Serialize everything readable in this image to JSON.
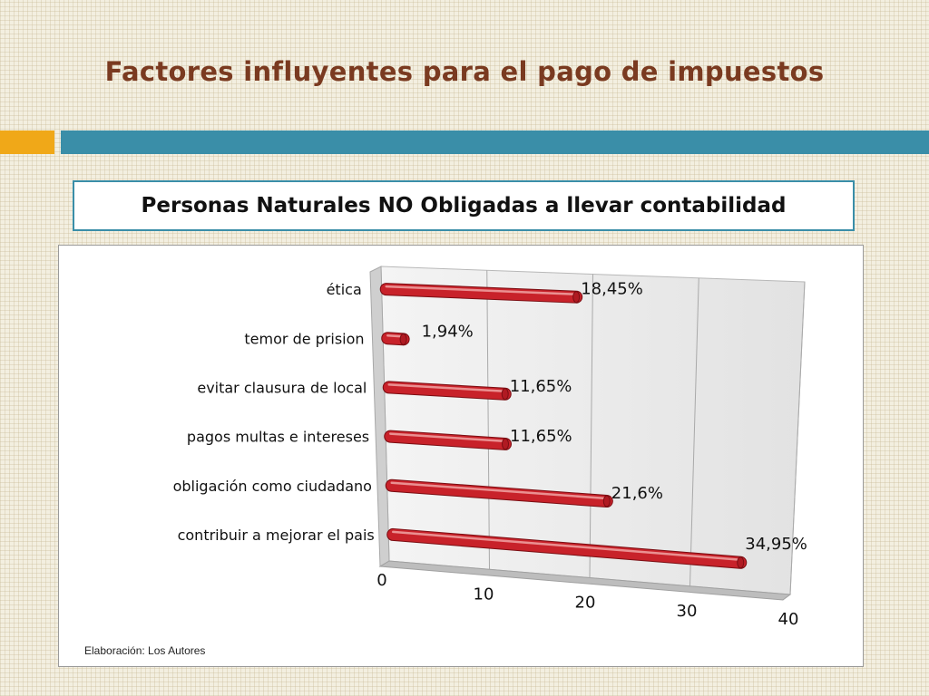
{
  "slide": {
    "title": "Factores influyentes para el pago de impuestos",
    "subtitle": "Personas Naturales NO Obligadas a llevar contabilidad",
    "source": "Elaboración: Los Autores"
  },
  "colors": {
    "title": "#7a3a20",
    "accent_orange": "#f0a818",
    "accent_teal": "#3a8ea8",
    "bar": "#c8222a"
  },
  "chart_data": {
    "type": "bar",
    "orientation": "horizontal",
    "style": "3d-cylinder",
    "categories": [
      "ética",
      "temor de prision",
      "evitar clausura de local",
      "pagos multas e intereses",
      "obligación como ciudadano",
      "contribuir a mejorar el pais"
    ],
    "values": [
      18.45,
      1.94,
      11.65,
      11.65,
      21.6,
      34.95
    ],
    "data_labels": [
      "18,45%",
      "1,94%",
      "11,65%",
      "11,65%",
      "21,6%",
      "34,95%"
    ],
    "x_ticks": [
      0,
      10,
      20,
      30,
      40
    ],
    "xlim": [
      0,
      40
    ],
    "grid": true,
    "legend": "none"
  }
}
